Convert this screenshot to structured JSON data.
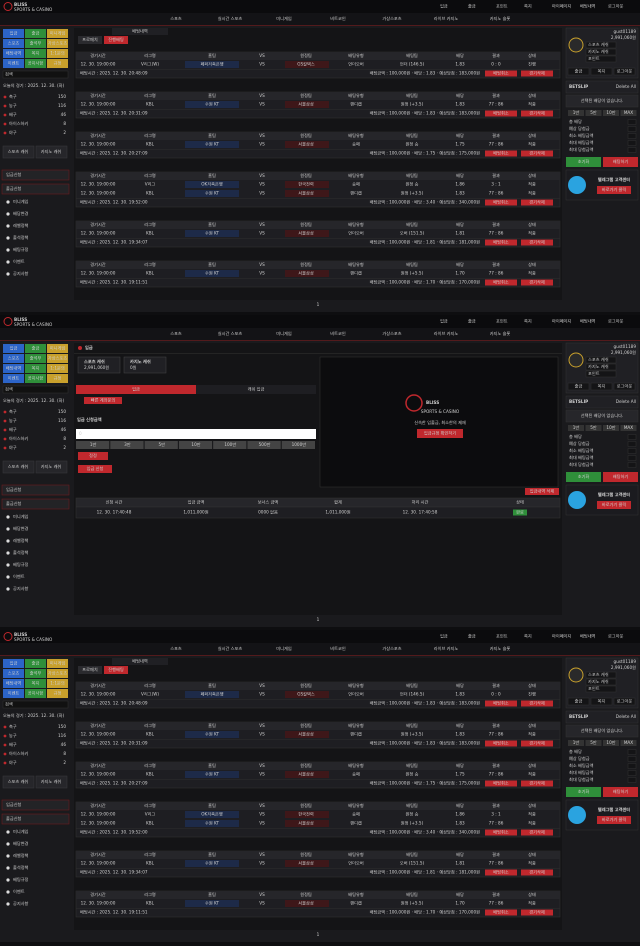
{
  "header": {
    "logo": "BLISS",
    "logo_sub": "SPORTS & CASINO",
    "top_links": [
      "입금",
      "출금",
      "포인트",
      "쪽지",
      "마이페이지",
      "배팅내역",
      "로그아웃"
    ],
    "nav": [
      "스포츠",
      "실시간 스포츠",
      "미니게임",
      "비트코인",
      "가상스포츠",
      "라이브 카지노",
      "카지노 슬롯"
    ]
  },
  "sidebar": {
    "menu": [
      "입금",
      "출금",
      "미니게임",
      "스포츠",
      "출석부",
      "가상스포츠",
      "배팅내역",
      "쪽지",
      "1:1문의",
      "이벤트",
      "공지사항",
      "규정"
    ],
    "search": "검색",
    "today": "오늘의 경기 : 2025. 12. 30. (화)",
    "sports": [
      {
        "name": "축구",
        "count": 150
      },
      {
        "name": "농구",
        "count": 116
      },
      {
        "name": "배구",
        "count": 46
      },
      {
        "name": "아이스하키",
        "count": 8
      },
      {
        "name": "야구",
        "count": 2
      }
    ],
    "cards": [
      "스포츠 캐쉬",
      "카지노 캐쉬"
    ],
    "deposit_req": "입금신청",
    "withdraw_req": "출금신청",
    "links": [
      "미니게임",
      "배당변경",
      "레벨정책",
      "출석정책",
      "베팅규정",
      "이벤트",
      "공지사항"
    ]
  },
  "account": {
    "user": "gust01189",
    "balance": "2,991,060원",
    "items": [
      "스포츠 캐쉬",
      "카지노 캐쉬",
      "포인트"
    ],
    "buttons": [
      "출금",
      "쪽지",
      "로그아웃"
    ],
    "betslip": "BETSLIP",
    "clear": "Delete All",
    "notice": "선택된 배당이 없습니다.",
    "chips": [
      "1만",
      "5만",
      "10만",
      "MAX"
    ],
    "fields": [
      "총 배당",
      "예상 당첨금",
      "최소 배팅금액",
      "최대 배팅금액",
      "최대 당첨금액"
    ],
    "actions": [
      "초기화",
      "배팅하기"
    ],
    "telegram": "텔레그램 고객센터",
    "telegram_link": "바로가기 클릭"
  },
  "history": {
    "section": "배팅내역",
    "tabs": [
      "프로매치",
      "진행배팅"
    ],
    "columns": [
      "경기시간",
      "리그명",
      "홈팀",
      "VS",
      "원정팀",
      "배팅유형",
      "배팅팀",
      "배당",
      "결과",
      "상태"
    ],
    "actions": [
      "배팅취소",
      "경기삭제"
    ],
    "bets": [
      {
        "rows": [
          [
            "12. 30. 19:00:00",
            "V리그(W)",
            "페퍼저축은행",
            "VS",
            "GS칼텍스",
            "언더오버",
            "언더 (146.5)",
            "1.83",
            "0 : 0",
            "진행"
          ]
        ],
        "time": "배팅시간 : 2025. 12. 30. 20:48:09",
        "summary": "배팅금액 : 100,000원 · 배당 : 1.83 · 예상당첨 : 183,000원"
      },
      {
        "rows": [
          [
            "12. 30. 19:00:00",
            "KBL",
            "수원 KT",
            "VS",
            "서울삼성",
            "핸디캡",
            "원정 (+3.5)",
            "1.83",
            "77 : 86",
            "적중"
          ]
        ],
        "time": "배팅시간 : 2025. 12. 30. 20:31:09",
        "summary": "배팅금액 : 100,000원 · 배당 : 1.83 · 예상당첨 : 183,000원"
      },
      {
        "rows": [
          [
            "12. 30. 19:00:00",
            "KBL",
            "수원 KT",
            "VS",
            "서울삼성",
            "승패",
            "원정 승",
            "1.75",
            "77 : 86",
            "적중"
          ]
        ],
        "time": "배팅시간 : 2025. 12. 30. 20:27:09",
        "summary": "배팅금액 : 100,000원 · 배당 : 1.75 · 예상당첨 : 175,000원"
      },
      {
        "rows": [
          [
            "12. 30. 19:00:00",
            "V리그",
            "OK저축은행",
            "VS",
            "한국전력",
            "승패",
            "원정 승",
            "1.86",
            "3 : 1",
            "적중"
          ],
          [
            "12. 30. 19:00:00",
            "KBL",
            "수원 KT",
            "VS",
            "서울삼성",
            "핸디캡",
            "원정 (+3.5)",
            "1.83",
            "77 : 86",
            "적중"
          ]
        ],
        "time": "배팅시간 : 2025. 12. 30. 19:52:00",
        "summary": "배팅금액 : 100,000원 · 배당 : 3.40 · 예상당첨 : 340,000원"
      },
      {
        "rows": [
          [
            "12. 30. 19:00:00",
            "KBL",
            "수원 KT",
            "VS",
            "서울삼성",
            "언더오버",
            "오버 (151.5)",
            "1.81",
            "77 : 86",
            "적중"
          ]
        ],
        "time": "배팅시간 : 2025. 12. 30. 19:34:07",
        "summary": "배팅금액 : 100,000원 · 배당 : 1.81 · 예상당첨 : 181,000원"
      },
      {
        "rows": [
          [
            "12. 30. 19:00:00",
            "KBL",
            "수원 KT",
            "VS",
            "서울삼성",
            "핸디캡",
            "원정 (+5.5)",
            "1.70",
            "77 : 86",
            "적중"
          ]
        ],
        "time": "배팅시간 : 2025. 12. 30. 19:11:51",
        "summary": "배팅금액 : 100,000원 · 배당 : 1.70 · 예상당첨 : 170,000원"
      }
    ]
  },
  "deposit": {
    "title": "입금",
    "wallets": [
      {
        "name": "스포츠 캐쉬",
        "amount": "2,991,060원"
      },
      {
        "name": "카지노 캐쉬",
        "amount": "0원"
      }
    ],
    "tabs": [
      "입금",
      "캐쉬 입금"
    ],
    "account_button": "빠른 계좌문의",
    "form_title": "입금 신청금액",
    "input": "0",
    "amounts": [
      "1만",
      "3만",
      "5만",
      "10만",
      "100만",
      "500만",
      "1000만"
    ],
    "reset": "정정",
    "submit": "입금 신청",
    "banner": {
      "logo": "BLISS",
      "subtitle": "SPORTS & CASINO",
      "tagline": "신속한 입출금, 최소한의 제재",
      "button": "입금규정 확인하기"
    },
    "delete_button": "입금내역 삭제",
    "columns": [
      "신청 시간",
      "입금 금액",
      "보너스 금액",
      "합계",
      "처리 시간",
      "상태"
    ],
    "rows": [
      [
        "12. 30. 17:40:48",
        "1,011,000원",
        "0000 없음",
        "1,011,000원",
        "12. 30. 17:40:58",
        "완료"
      ]
    ]
  },
  "pager": "1"
}
